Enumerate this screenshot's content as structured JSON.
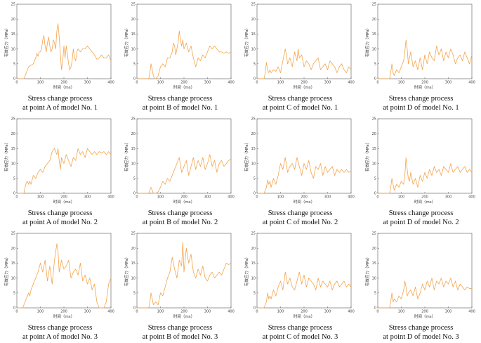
{
  "style": {
    "line_color": "#f5a34a",
    "axis_color": "#555555",
    "text_color": "#111111"
  },
  "chart_data": [
    {
      "type": "line",
      "model": "No. 1",
      "point": "A",
      "caption_line1": "Stress change process",
      "caption_line2": "at point A of model No. 1",
      "xlabel": "时间（ms）",
      "ylabel": "有效应力（MPa）",
      "xlim": [
        0,
        400
      ],
      "ylim": [
        0,
        25
      ],
      "xticks": [
        0,
        100,
        200,
        300,
        400
      ],
      "yticks": [
        0,
        5,
        10,
        15,
        20,
        25
      ],
      "x": [
        0,
        30,
        40,
        50,
        60,
        70,
        80,
        85,
        90,
        95,
        100,
        105,
        110,
        115,
        120,
        125,
        130,
        135,
        140,
        145,
        150,
        155,
        160,
        165,
        170,
        175,
        180,
        185,
        190,
        195,
        200,
        205,
        210,
        215,
        220,
        225,
        230,
        235,
        240,
        245,
        250,
        255,
        260,
        270,
        280,
        290,
        300,
        310,
        320,
        330,
        340,
        350,
        360,
        370,
        380,
        390,
        400
      ],
      "y": [
        0,
        0,
        2,
        4,
        4.5,
        5,
        7,
        8.5,
        7.5,
        9,
        9,
        10,
        13,
        14.5,
        11,
        9,
        12,
        14,
        11,
        9,
        10,
        13,
        12,
        10,
        16,
        18.5,
        14,
        8,
        3,
        6,
        11,
        7,
        11,
        8,
        5,
        3,
        4,
        6,
        10,
        7,
        6,
        9,
        10,
        9,
        10,
        10,
        11,
        10,
        9,
        8,
        6.5,
        7,
        8,
        7,
        7,
        8,
        6
      ]
    },
    {
      "type": "line",
      "model": "No. 1",
      "point": "B",
      "caption_line1": "Stress change process",
      "caption_line2": "at point B of model No. 1",
      "xlabel": "时间（ms）",
      "ylabel": "有效应力（MPa）",
      "xlim": [
        0,
        400
      ],
      "ylim": [
        0,
        25
      ],
      "xticks": [
        0,
        100,
        200,
        300,
        400
      ],
      "yticks": [
        0,
        5,
        10,
        15,
        20,
        25
      ],
      "x": [
        0,
        50,
        55,
        60,
        65,
        70,
        75,
        80,
        90,
        100,
        110,
        120,
        130,
        140,
        150,
        155,
        160,
        165,
        170,
        175,
        180,
        185,
        190,
        195,
        200,
        210,
        220,
        230,
        240,
        250,
        260,
        270,
        280,
        290,
        300,
        310,
        320,
        330,
        340,
        350,
        360,
        370,
        380,
        390,
        400
      ],
      "y": [
        0,
        0,
        2,
        5,
        3,
        1,
        0,
        0,
        1,
        4,
        5,
        4,
        7,
        7,
        9,
        12,
        11,
        8,
        10,
        12,
        16,
        13,
        11,
        13,
        10,
        12,
        9,
        11,
        7,
        4,
        7,
        6,
        8,
        7,
        9,
        11,
        10,
        11,
        10,
        9,
        9,
        8.5,
        9,
        8.5,
        9
      ]
    },
    {
      "type": "line",
      "model": "No. 1",
      "point": "C",
      "caption_line1": "Stress change process",
      "caption_line2": "at point C of model No. 1",
      "xlabel": "时间（ms）",
      "ylabel": "有效应力（MPa）",
      "xlim": [
        0,
        400
      ],
      "ylim": [
        0,
        25
      ],
      "xticks": [
        0,
        100,
        200,
        300,
        400
      ],
      "yticks": [
        0,
        5,
        10,
        15,
        20,
        25
      ],
      "x": [
        0,
        30,
        35,
        40,
        45,
        50,
        55,
        60,
        70,
        80,
        90,
        100,
        110,
        120,
        125,
        130,
        140,
        150,
        160,
        170,
        175,
        180,
        190,
        200,
        210,
        220,
        230,
        240,
        250,
        260,
        270,
        280,
        290,
        300,
        310,
        320,
        330,
        340,
        350,
        360,
        370,
        380,
        390,
        400
      ],
      "y": [
        0,
        0,
        2,
        5.5,
        3,
        2,
        3,
        2,
        3,
        2.5,
        4,
        2,
        6,
        10,
        8,
        5,
        7,
        4,
        9,
        6,
        10,
        7,
        8,
        4,
        6,
        5,
        3,
        5,
        6,
        7,
        3,
        4,
        5,
        3,
        6,
        5,
        4,
        2,
        4,
        5,
        3,
        2,
        4,
        3
      ]
    },
    {
      "type": "line",
      "model": "No. 1",
      "point": "D",
      "caption_line1": "Stress change process",
      "caption_line2": "at point D of model No. 1",
      "xlabel": "时间（ms）",
      "ylabel": "有效应力（MPa）",
      "xlim": [
        0,
        400
      ],
      "ylim": [
        0,
        25
      ],
      "xticks": [
        0,
        100,
        200,
        300,
        400
      ],
      "yticks": [
        0,
        5,
        10,
        15,
        20,
        25
      ],
      "x": [
        0,
        50,
        55,
        60,
        65,
        70,
        80,
        90,
        100,
        110,
        115,
        120,
        125,
        130,
        135,
        140,
        150,
        160,
        170,
        180,
        190,
        200,
        210,
        220,
        230,
        240,
        250,
        260,
        270,
        280,
        290,
        300,
        310,
        320,
        330,
        340,
        350,
        360,
        370,
        380,
        390,
        400
      ],
      "y": [
        0,
        0,
        2,
        5,
        2,
        1,
        3,
        2,
        4,
        6,
        9,
        13,
        10,
        5,
        7,
        9,
        4,
        6,
        3,
        7,
        3,
        8,
        5,
        9,
        7,
        6,
        11,
        8,
        10,
        6,
        9,
        7,
        10,
        8,
        5,
        7,
        8,
        6,
        9,
        7,
        5,
        8
      ]
    },
    {
      "type": "line",
      "model": "No. 2",
      "point": "A",
      "caption_line1": "Stress change process",
      "caption_line2": "at point A of model No. 2",
      "xlabel": "时间（ms）",
      "ylabel": "有效应力（MPa）",
      "xlim": [
        0,
        400
      ],
      "ylim": [
        0,
        25
      ],
      "xticks": [
        0,
        100,
        200,
        300,
        400
      ],
      "yticks": [
        0,
        5,
        10,
        15,
        20,
        25
      ],
      "x": [
        0,
        30,
        35,
        40,
        45,
        50,
        55,
        60,
        70,
        80,
        90,
        100,
        110,
        120,
        130,
        140,
        150,
        160,
        170,
        175,
        180,
        185,
        190,
        200,
        210,
        220,
        230,
        240,
        250,
        260,
        270,
        280,
        290,
        300,
        310,
        320,
        330,
        340,
        350,
        360,
        370,
        380,
        390,
        400
      ],
      "y": [
        0,
        0,
        2,
        3.5,
        4,
        3,
        4,
        3,
        6,
        5,
        7,
        8,
        7,
        9,
        10,
        11,
        14,
        15,
        13,
        15,
        11,
        8,
        12,
        10,
        13,
        11,
        9,
        12,
        11,
        15,
        13,
        14,
        12,
        15,
        14,
        13,
        14,
        13,
        14,
        13.5,
        14,
        13,
        14,
        13
      ]
    },
    {
      "type": "line",
      "model": "No. 2",
      "point": "B",
      "caption_line1": "Stress change process",
      "caption_line2": "at point B of model No. 2",
      "xlabel": "时间（ms）",
      "ylabel": "有效应力（MPa）",
      "xlim": [
        0,
        400
      ],
      "ylim": [
        0,
        25
      ],
      "xticks": [
        0,
        100,
        200,
        300,
        400
      ],
      "yticks": [
        0,
        5,
        10,
        15,
        20,
        25
      ],
      "x": [
        0,
        50,
        55,
        60,
        65,
        70,
        80,
        90,
        100,
        110,
        120,
        130,
        140,
        150,
        160,
        170,
        180,
        190,
        200,
        210,
        220,
        230,
        240,
        250,
        260,
        270,
        280,
        290,
        300,
        310,
        320,
        330,
        340,
        350,
        360,
        370,
        380,
        390,
        400
      ],
      "y": [
        0,
        0,
        1,
        2,
        1,
        0,
        0,
        0.5,
        2,
        4,
        3,
        5,
        4,
        6,
        8,
        10,
        12,
        7,
        9,
        11,
        6,
        9,
        12,
        8,
        11,
        9,
        12,
        8,
        10,
        13,
        9,
        11,
        7,
        10,
        11,
        9,
        10,
        11,
        11.5
      ]
    },
    {
      "type": "line",
      "model": "No. 2",
      "point": "C",
      "caption_line1": "Stress change process",
      "caption_line2": "at point C of model No. 2",
      "xlabel": "时间（ms）",
      "ylabel": "有效应力（MPa）",
      "xlim": [
        0,
        400
      ],
      "ylim": [
        0,
        25
      ],
      "xticks": [
        0,
        100,
        200,
        300,
        400
      ],
      "yticks": [
        0,
        5,
        10,
        15,
        20,
        25
      ],
      "x": [
        0,
        30,
        40,
        45,
        50,
        55,
        60,
        70,
        80,
        90,
        100,
        110,
        120,
        130,
        140,
        150,
        160,
        170,
        180,
        190,
        200,
        210,
        220,
        230,
        240,
        250,
        260,
        270,
        280,
        290,
        300,
        310,
        320,
        330,
        340,
        350,
        360,
        370,
        380,
        390,
        400
      ],
      "y": [
        0,
        0,
        2,
        4.5,
        3,
        4,
        2,
        5,
        3,
        6,
        10,
        8,
        12,
        7,
        9,
        10,
        8,
        12,
        9,
        6,
        10,
        8,
        11,
        7,
        5,
        9,
        8,
        10,
        6,
        9,
        7,
        8,
        9,
        6,
        8,
        7,
        8,
        7,
        8,
        7,
        7.5
      ]
    },
    {
      "type": "line",
      "model": "No. 2",
      "point": "D",
      "caption_line1": "Stress change process",
      "caption_line2": "at point D of model No. 2",
      "xlabel": "时间（ms）",
      "ylabel": "有效应力（MPa）",
      "xlim": [
        0,
        400
      ],
      "ylim": [
        0,
        25
      ],
      "xticks": [
        0,
        100,
        200,
        300,
        400
      ],
      "yticks": [
        0,
        5,
        10,
        15,
        20,
        25
      ],
      "x": [
        0,
        50,
        55,
        60,
        65,
        70,
        80,
        90,
        100,
        110,
        115,
        120,
        125,
        130,
        135,
        140,
        150,
        160,
        170,
        180,
        190,
        200,
        210,
        220,
        230,
        240,
        250,
        260,
        270,
        280,
        290,
        300,
        310,
        320,
        330,
        340,
        350,
        360,
        370,
        380,
        390,
        400
      ],
      "y": [
        0,
        0,
        2,
        5,
        3,
        1,
        3,
        2,
        4,
        3,
        6,
        12,
        8,
        5,
        4,
        7,
        3,
        5,
        2,
        6,
        4,
        7,
        5,
        8,
        6,
        9,
        7,
        8,
        6,
        9,
        8,
        7,
        10,
        7,
        8,
        9,
        7,
        8,
        9,
        7,
        8,
        7
      ]
    },
    {
      "type": "line",
      "model": "No. 3",
      "point": "A",
      "caption_line1": "Stress change process",
      "caption_line2": "at point A of model No. 3",
      "xlabel": "时间（ms）",
      "ylabel": "有效应力（MPa）",
      "xlim": [
        0,
        400
      ],
      "ylim": [
        0,
        25
      ],
      "xticks": [
        0,
        100,
        200,
        300,
        400
      ],
      "yticks": [
        0,
        5,
        10,
        15,
        20,
        25
      ],
      "x": [
        0,
        25,
        30,
        40,
        50,
        55,
        60,
        70,
        80,
        90,
        100,
        110,
        120,
        130,
        140,
        150,
        160,
        170,
        175,
        180,
        190,
        200,
        210,
        220,
        230,
        240,
        250,
        260,
        270,
        280,
        290,
        300,
        310,
        320,
        330,
        340,
        350,
        360,
        370,
        380,
        390,
        400
      ],
      "y": [
        0,
        0,
        1,
        3,
        5,
        4,
        6,
        8,
        10,
        12,
        15,
        12,
        16,
        9,
        14,
        8,
        16,
        21.5,
        19,
        12,
        16,
        13,
        14,
        16,
        10,
        12,
        13,
        11,
        15,
        9,
        11,
        8,
        10,
        6,
        8,
        2,
        0,
        0,
        0,
        2,
        8,
        10
      ]
    },
    {
      "type": "line",
      "model": "No. 3",
      "point": "B",
      "caption_line1": "Stress change process",
      "caption_line2": "at point B of model No. 3",
      "xlabel": "时间（ms）",
      "ylabel": "有效应力（MPa）",
      "xlim": [
        0,
        400
      ],
      "ylim": [
        0,
        25
      ],
      "xticks": [
        0,
        100,
        200,
        300,
        400
      ],
      "yticks": [
        0,
        5,
        10,
        15,
        20,
        25
      ],
      "x": [
        0,
        50,
        55,
        60,
        65,
        70,
        80,
        90,
        100,
        110,
        120,
        130,
        140,
        150,
        160,
        170,
        180,
        190,
        195,
        200,
        210,
        220,
        230,
        240,
        250,
        260,
        270,
        280,
        290,
        300,
        310,
        320,
        330,
        340,
        350,
        360,
        370,
        380,
        390,
        400
      ],
      "y": [
        0,
        0,
        2,
        5,
        3,
        1,
        2,
        1,
        5,
        4,
        7,
        10,
        12,
        17,
        13,
        10,
        16,
        14,
        22,
        12,
        20,
        15,
        18,
        12,
        10,
        13,
        11,
        14,
        10,
        9,
        11,
        12,
        10,
        11,
        12,
        11,
        13,
        15,
        14.5,
        15
      ]
    },
    {
      "type": "line",
      "model": "No. 3",
      "point": "C",
      "caption_line1": "Stress change process",
      "caption_line2": "at point C of model No. 3",
      "xlabel": "时间（ms）",
      "ylabel": "有效应力（MPa）",
      "xlim": [
        0,
        400
      ],
      "ylim": [
        0,
        25
      ],
      "xticks": [
        0,
        100,
        200,
        300,
        400
      ],
      "yticks": [
        0,
        5,
        10,
        15,
        20,
        25
      ],
      "x": [
        0,
        30,
        40,
        45,
        50,
        55,
        60,
        70,
        80,
        90,
        100,
        110,
        120,
        130,
        140,
        150,
        160,
        170,
        180,
        190,
        200,
        210,
        220,
        230,
        240,
        250,
        260,
        270,
        280,
        290,
        300,
        310,
        320,
        330,
        340,
        350,
        360,
        370,
        380,
        390,
        400
      ],
      "y": [
        0,
        0,
        2,
        5,
        3,
        4,
        3,
        6,
        4,
        7,
        9,
        6,
        12,
        8,
        10,
        7,
        6,
        9,
        12,
        8,
        11,
        7,
        10,
        9,
        8,
        6,
        10,
        7,
        9,
        8,
        7,
        9,
        6,
        8,
        9,
        7,
        8,
        9,
        7,
        8,
        7
      ]
    },
    {
      "type": "line",
      "model": "No. 3",
      "point": "D",
      "caption_line1": "Stress change process",
      "caption_line2": "at point D of model No. 3",
      "xlabel": "时间（ms）",
      "ylabel": "有效应力（MPa）",
      "xlim": [
        0,
        400
      ],
      "ylim": [
        0,
        25
      ],
      "xticks": [
        0,
        100,
        200,
        300,
        400
      ],
      "yticks": [
        0,
        5,
        10,
        15,
        20,
        25
      ],
      "x": [
        0,
        50,
        55,
        60,
        65,
        70,
        80,
        90,
        100,
        110,
        115,
        120,
        125,
        130,
        140,
        150,
        160,
        170,
        180,
        190,
        200,
        210,
        220,
        230,
        240,
        250,
        260,
        270,
        280,
        290,
        300,
        310,
        320,
        330,
        340,
        350,
        360,
        370,
        380,
        390,
        400
      ],
      "y": [
        0,
        0,
        2,
        5,
        2,
        3,
        2,
        4,
        3,
        6,
        9,
        7,
        4,
        5,
        6,
        4,
        7,
        3,
        5,
        8,
        6,
        9,
        7,
        10,
        6,
        9,
        8,
        10,
        7,
        9,
        8,
        10,
        7,
        9,
        6,
        8,
        7,
        6,
        7,
        6.5,
        6.5
      ]
    }
  ]
}
